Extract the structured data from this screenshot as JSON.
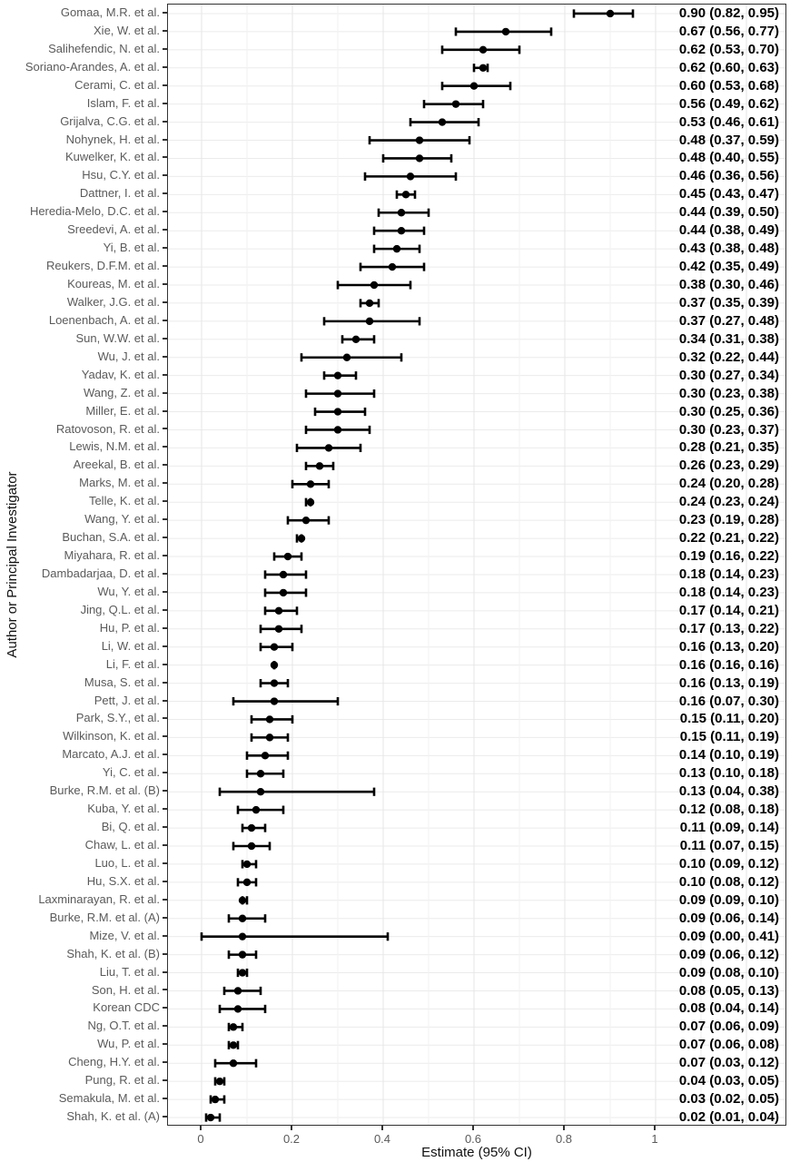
{
  "chart_data": {
    "type": "forest",
    "title": "",
    "xlabel": "Estimate (95% CI)",
    "ylabel": "Author or Principal Investigator",
    "xlim": [
      -0.074,
      1.29
    ],
    "x_ticks": [
      0,
      0.2,
      0.4,
      0.6,
      0.8,
      1
    ],
    "x_tick_labels": [
      "0",
      "0.2",
      "0.4",
      "0.6",
      "0.8",
      "1"
    ],
    "x_grid_major": [
      0,
      0.2,
      0.4,
      0.6,
      0.8,
      1.0,
      1.2
    ],
    "x_grid_minor": [
      0.1,
      0.3,
      0.5,
      0.7,
      0.9,
      1.1
    ],
    "grid": "boxed white panel, light gray major/minor vertical gridlines, light gray horizontal line per row",
    "legend": "none",
    "studies": [
      {
        "label": "Gomaa, M.R. et al.",
        "est": 0.9,
        "lo": 0.82,
        "hi": 0.95,
        "text": "0.90 (0.82, 0.95)"
      },
      {
        "label": "Xie, W. et al.",
        "est": 0.67,
        "lo": 0.56,
        "hi": 0.77,
        "text": "0.67 (0.56, 0.77)"
      },
      {
        "label": "Salihefendic, N. et al.",
        "est": 0.62,
        "lo": 0.53,
        "hi": 0.7,
        "text": "0.62 (0.53, 0.70)"
      },
      {
        "label": "Soriano-Arandes, A. et al.",
        "est": 0.62,
        "lo": 0.6,
        "hi": 0.63,
        "text": "0.62 (0.60, 0.63)"
      },
      {
        "label": "Cerami, C. et al.",
        "est": 0.6,
        "lo": 0.53,
        "hi": 0.68,
        "text": "0.60 (0.53, 0.68)"
      },
      {
        "label": "Islam, F. et al.",
        "est": 0.56,
        "lo": 0.49,
        "hi": 0.62,
        "text": "0.56 (0.49, 0.62)"
      },
      {
        "label": "Grijalva, C.G. et al.",
        "est": 0.53,
        "lo": 0.46,
        "hi": 0.61,
        "text": "0.53 (0.46, 0.61)"
      },
      {
        "label": "Nohynek, H. et al.",
        "est": 0.48,
        "lo": 0.37,
        "hi": 0.59,
        "text": "0.48 (0.37, 0.59)"
      },
      {
        "label": "Kuwelker, K. et al.",
        "est": 0.48,
        "lo": 0.4,
        "hi": 0.55,
        "text": "0.48 (0.40, 0.55)"
      },
      {
        "label": "Hsu, C.Y. et al.",
        "est": 0.46,
        "lo": 0.36,
        "hi": 0.56,
        "text": "0.46 (0.36, 0.56)"
      },
      {
        "label": "Dattner, I. et al.",
        "est": 0.45,
        "lo": 0.43,
        "hi": 0.47,
        "text": "0.45 (0.43, 0.47)"
      },
      {
        "label": "Heredia-Melo, D.C. et al.",
        "est": 0.44,
        "lo": 0.39,
        "hi": 0.5,
        "text": "0.44 (0.39, 0.50)"
      },
      {
        "label": "Sreedevi, A. et al.",
        "est": 0.44,
        "lo": 0.38,
        "hi": 0.49,
        "text": "0.44 (0.38, 0.49)"
      },
      {
        "label": "Yi, B. et al.",
        "est": 0.43,
        "lo": 0.38,
        "hi": 0.48,
        "text": "0.43 (0.38, 0.48)"
      },
      {
        "label": "Reukers, D.F.M. et al.",
        "est": 0.42,
        "lo": 0.35,
        "hi": 0.49,
        "text": "0.42 (0.35, 0.49)"
      },
      {
        "label": "Koureas, M. et al.",
        "est": 0.38,
        "lo": 0.3,
        "hi": 0.46,
        "text": "0.38 (0.30, 0.46)"
      },
      {
        "label": "Walker, J.G. et al.",
        "est": 0.37,
        "lo": 0.35,
        "hi": 0.39,
        "text": "0.37 (0.35, 0.39)"
      },
      {
        "label": "Loenenbach, A. et al.",
        "est": 0.37,
        "lo": 0.27,
        "hi": 0.48,
        "text": "0.37 (0.27, 0.48)"
      },
      {
        "label": "Sun, W.W. et al.",
        "est": 0.34,
        "lo": 0.31,
        "hi": 0.38,
        "text": "0.34 (0.31, 0.38)"
      },
      {
        "label": "Wu, J. et al.",
        "est": 0.32,
        "lo": 0.22,
        "hi": 0.44,
        "text": "0.32 (0.22, 0.44)"
      },
      {
        "label": "Yadav, K. et al.",
        "est": 0.3,
        "lo": 0.27,
        "hi": 0.34,
        "text": "0.30 (0.27, 0.34)"
      },
      {
        "label": "Wang, Z. et al.",
        "est": 0.3,
        "lo": 0.23,
        "hi": 0.38,
        "text": "0.30 (0.23, 0.38)"
      },
      {
        "label": "Miller, E. et al.",
        "est": 0.3,
        "lo": 0.25,
        "hi": 0.36,
        "text": "0.30 (0.25, 0.36)"
      },
      {
        "label": "Ratovoson, R. et al.",
        "est": 0.3,
        "lo": 0.23,
        "hi": 0.37,
        "text": "0.30 (0.23, 0.37)"
      },
      {
        "label": "Lewis, N.M. et al.",
        "est": 0.28,
        "lo": 0.21,
        "hi": 0.35,
        "text": "0.28 (0.21, 0.35)"
      },
      {
        "label": "Areekal, B. et al.",
        "est": 0.26,
        "lo": 0.23,
        "hi": 0.29,
        "text": "0.26 (0.23, 0.29)"
      },
      {
        "label": "Marks, M. et al.",
        "est": 0.24,
        "lo": 0.2,
        "hi": 0.28,
        "text": "0.24 (0.20, 0.28)"
      },
      {
        "label": "Telle, K. et al.",
        "est": 0.24,
        "lo": 0.23,
        "hi": 0.24,
        "text": "0.24 (0.23, 0.24)"
      },
      {
        "label": "Wang, Y. et al.",
        "est": 0.23,
        "lo": 0.19,
        "hi": 0.28,
        "text": "0.23 (0.19, 0.28)"
      },
      {
        "label": "Buchan, S.A. et al.",
        "est": 0.22,
        "lo": 0.21,
        "hi": 0.22,
        "text": "0.22 (0.21, 0.22)"
      },
      {
        "label": "Miyahara, R. et al.",
        "est": 0.19,
        "lo": 0.16,
        "hi": 0.22,
        "text": "0.19 (0.16, 0.22)"
      },
      {
        "label": "Dambadarjaa, D. et al.",
        "est": 0.18,
        "lo": 0.14,
        "hi": 0.23,
        "text": "0.18 (0.14, 0.23)"
      },
      {
        "label": "Wu, Y. et al.",
        "est": 0.18,
        "lo": 0.14,
        "hi": 0.23,
        "text": "0.18 (0.14, 0.23)"
      },
      {
        "label": "Jing, Q.L. et al.",
        "est": 0.17,
        "lo": 0.14,
        "hi": 0.21,
        "text": "0.17 (0.14, 0.21)"
      },
      {
        "label": "Hu, P. et al.",
        "est": 0.17,
        "lo": 0.13,
        "hi": 0.22,
        "text": "0.17 (0.13, 0.22)"
      },
      {
        "label": "Li, W. et al.",
        "est": 0.16,
        "lo": 0.13,
        "hi": 0.2,
        "text": "0.16 (0.13, 0.20)"
      },
      {
        "label": "Li, F. et al.",
        "est": 0.16,
        "lo": 0.16,
        "hi": 0.16,
        "text": "0.16 (0.16, 0.16)"
      },
      {
        "label": "Musa, S. et al.",
        "est": 0.16,
        "lo": 0.13,
        "hi": 0.19,
        "text": "0.16 (0.13, 0.19)"
      },
      {
        "label": "Pett, J. et al.",
        "est": 0.16,
        "lo": 0.07,
        "hi": 0.3,
        "text": "0.16 (0.07, 0.30)"
      },
      {
        "label": "Park, S.Y., et al.",
        "est": 0.15,
        "lo": 0.11,
        "hi": 0.2,
        "text": "0.15 (0.11, 0.20)"
      },
      {
        "label": "Wilkinson, K. et al.",
        "est": 0.15,
        "lo": 0.11,
        "hi": 0.19,
        "text": "0.15 (0.11, 0.19)"
      },
      {
        "label": "Marcato, A.J. et al.",
        "est": 0.14,
        "lo": 0.1,
        "hi": 0.19,
        "text": "0.14 (0.10, 0.19)"
      },
      {
        "label": "Yi, C. et al.",
        "est": 0.13,
        "lo": 0.1,
        "hi": 0.18,
        "text": "0.13 (0.10, 0.18)"
      },
      {
        "label": "Burke, R.M. et al. (B)",
        "est": 0.13,
        "lo": 0.04,
        "hi": 0.38,
        "text": "0.13 (0.04, 0.38)"
      },
      {
        "label": "Kuba, Y. et al.",
        "est": 0.12,
        "lo": 0.08,
        "hi": 0.18,
        "text": "0.12 (0.08, 0.18)"
      },
      {
        "label": "Bi, Q. et al.",
        "est": 0.11,
        "lo": 0.09,
        "hi": 0.14,
        "text": "0.11 (0.09, 0.14)"
      },
      {
        "label": "Chaw, L. et al.",
        "est": 0.11,
        "lo": 0.07,
        "hi": 0.15,
        "text": "0.11 (0.07, 0.15)"
      },
      {
        "label": "Luo, L. et al.",
        "est": 0.1,
        "lo": 0.09,
        "hi": 0.12,
        "text": "0.10 (0.09, 0.12)"
      },
      {
        "label": "Hu, S.X. et al.",
        "est": 0.1,
        "lo": 0.08,
        "hi": 0.12,
        "text": "0.10 (0.08, 0.12)"
      },
      {
        "label": "Laxminarayan, R. et al.",
        "est": 0.09,
        "lo": 0.09,
        "hi": 0.1,
        "text": "0.09 (0.09, 0.10)"
      },
      {
        "label": "Burke, R.M. et al. (A)",
        "est": 0.09,
        "lo": 0.06,
        "hi": 0.14,
        "text": "0.09 (0.06, 0.14)"
      },
      {
        "label": "Mize, V. et al.",
        "est": 0.09,
        "lo": 0.0,
        "hi": 0.41,
        "text": "0.09 (0.00, 0.41)"
      },
      {
        "label": "Shah, K. et al. (B)",
        "est": 0.09,
        "lo": 0.06,
        "hi": 0.12,
        "text": "0.09 (0.06, 0.12)"
      },
      {
        "label": "Liu, T. et al.",
        "est": 0.09,
        "lo": 0.08,
        "hi": 0.1,
        "text": "0.09 (0.08, 0.10)"
      },
      {
        "label": "Son, H. et al.",
        "est": 0.08,
        "lo": 0.05,
        "hi": 0.13,
        "text": "0.08 (0.05, 0.13)"
      },
      {
        "label": "Korean CDC",
        "est": 0.08,
        "lo": 0.04,
        "hi": 0.14,
        "text": "0.08 (0.04, 0.14)"
      },
      {
        "label": "Ng, O.T. et al.",
        "est": 0.07,
        "lo": 0.06,
        "hi": 0.09,
        "text": "0.07 (0.06, 0.09)"
      },
      {
        "label": "Wu, P. et al.",
        "est": 0.07,
        "lo": 0.06,
        "hi": 0.08,
        "text": "0.07 (0.06, 0.08)"
      },
      {
        "label": "Cheng, H.Y. et al.",
        "est": 0.07,
        "lo": 0.03,
        "hi": 0.12,
        "text": "0.07 (0.03, 0.12)"
      },
      {
        "label": "Pung, R. et al.",
        "est": 0.04,
        "lo": 0.03,
        "hi": 0.05,
        "text": "0.04 (0.03, 0.05)"
      },
      {
        "label": "Semakula, M. et al.",
        "est": 0.03,
        "lo": 0.02,
        "hi": 0.05,
        "text": "0.03 (0.02, 0.05)"
      },
      {
        "label": "Shah, K. et al. (A)",
        "est": 0.02,
        "lo": 0.01,
        "hi": 0.04,
        "text": "0.02 (0.01, 0.04)"
      }
    ]
  },
  "colors": {
    "marker": "#000000",
    "estimate_text": "#000000",
    "axis_text": "#5a5a5a",
    "axis_title": "#111111",
    "panel_border": "#333333",
    "tick_mark": "#333333",
    "grid_major": "#e6e6e6",
    "grid_minor": "#f2f2f2",
    "grid_row": "#ebebeb",
    "background": "#ffffff"
  }
}
